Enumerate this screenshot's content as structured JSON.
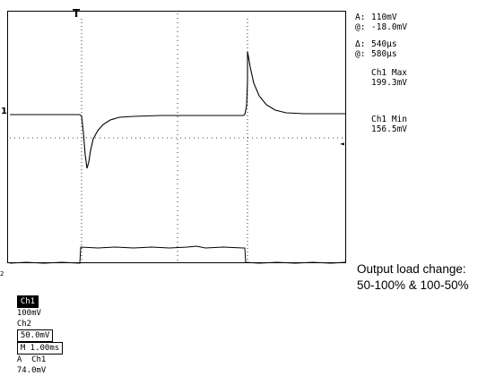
{
  "cursor_readouts": [
    {
      "label": "A:",
      "value": "110mV"
    },
    {
      "label": "@:",
      "value": "-18.0mV"
    },
    {
      "label": "Δ:",
      "value": "540µs"
    },
    {
      "label": "@:",
      "value": "580µs"
    }
  ],
  "measurements": {
    "max": {
      "label": "Ch1 Max",
      "value": "199.3mV"
    },
    "min": {
      "label": "Ch1 Min",
      "value": "156.5mV"
    }
  },
  "status_bar": {
    "ch1_label": "Ch1",
    "ch1_scale": "100mV",
    "ch2_label": "Ch2",
    "ch2_scale": "50.0mV",
    "timebase": "M 1.00ms",
    "trigger_channel": "A  Ch1",
    "trigger_level": "74.0mV"
  },
  "caption": {
    "line1": "Output load change:",
    "line2": "50-100% & 100-50%"
  },
  "markers": {
    "trigger_top": "T",
    "ch1_ground": "1",
    "ch2_ground": "2",
    "trigger_level_arrow": "◄"
  },
  "colors": {
    "trace": "#000000",
    "graticule": "#000000",
    "background": "#ffffff"
  }
}
